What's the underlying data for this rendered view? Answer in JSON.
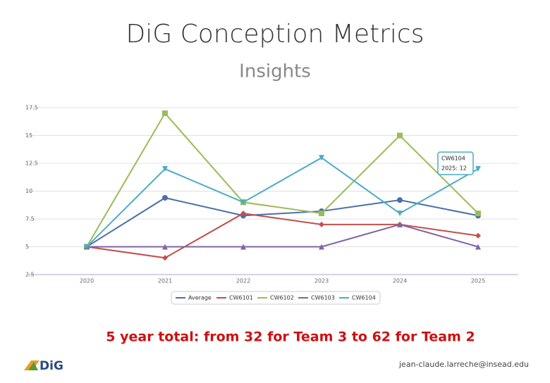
{
  "title": "DiG Conception Metrics",
  "subtitle": "Insights",
  "chart_data": {
    "type": "line",
    "categories": [
      "2020",
      "2021",
      "2022",
      "2023",
      "2024",
      "2025"
    ],
    "series": [
      {
        "name": "Average",
        "color": "#4a6ea8",
        "marker": "circle",
        "values": [
          5,
          9.4,
          7.8,
          8.2,
          9.2,
          7.8
        ]
      },
      {
        "name": "CW6101",
        "color": "#c0504d",
        "marker": "diamond",
        "values": [
          5,
          4,
          8,
          7,
          7,
          6
        ]
      },
      {
        "name": "CW6102",
        "color": "#9bbb59",
        "marker": "square",
        "values": [
          5,
          17,
          9,
          8,
          15,
          8
        ]
      },
      {
        "name": "CW6103",
        "color": "#8064a2",
        "marker": "triangle",
        "values": [
          5,
          5,
          5,
          5,
          7,
          5
        ]
      },
      {
        "name": "CW6104",
        "color": "#4bacc6",
        "marker": "triangle-down",
        "values": [
          5,
          12,
          9,
          13,
          8,
          12
        ]
      }
    ],
    "ylim": [
      2.5,
      17.5
    ],
    "yticks": [
      2.5,
      5,
      7.5,
      10,
      12.5,
      15,
      17.5
    ],
    "grid": true,
    "tooltip": {
      "title": "CW6104",
      "text": "2025: 12"
    }
  },
  "footer": {
    "summary": "5 year total: from 32 for Team 3 to 62 for Team 2",
    "logo": "DiG",
    "email": "jean-claude.larreche@insead.edu"
  }
}
